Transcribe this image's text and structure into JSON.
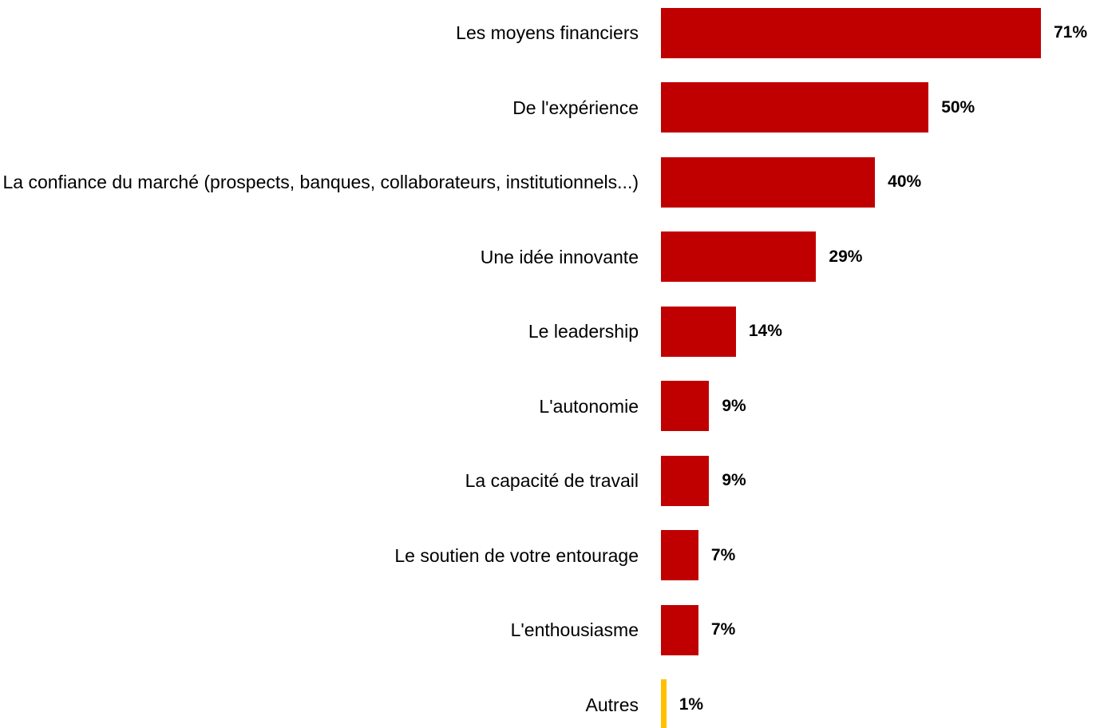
{
  "chart_data": {
    "type": "bar",
    "orientation": "horizontal",
    "categories": [
      "Les moyens financiers",
      "De l'expérience",
      "La confiance du marché (prospects, banques, collaborateurs, institutionnels...)",
      "Une idée innovante",
      "Le leadership",
      "L'autonomie",
      "La capacité de travail",
      "Le soutien de votre entourage",
      "L'enthousiasme",
      "Autres"
    ],
    "values": [
      71,
      50,
      40,
      29,
      14,
      9,
      9,
      7,
      7,
      1
    ],
    "value_labels": [
      "71%",
      "50%",
      "40%",
      "29%",
      "14%",
      "9%",
      "9%",
      "7%",
      "7%",
      "1%"
    ],
    "colors": [
      "#c00000",
      "#c00000",
      "#c00000",
      "#c00000",
      "#c00000",
      "#c00000",
      "#c00000",
      "#c00000",
      "#c00000",
      "#ffc000"
    ]
  }
}
